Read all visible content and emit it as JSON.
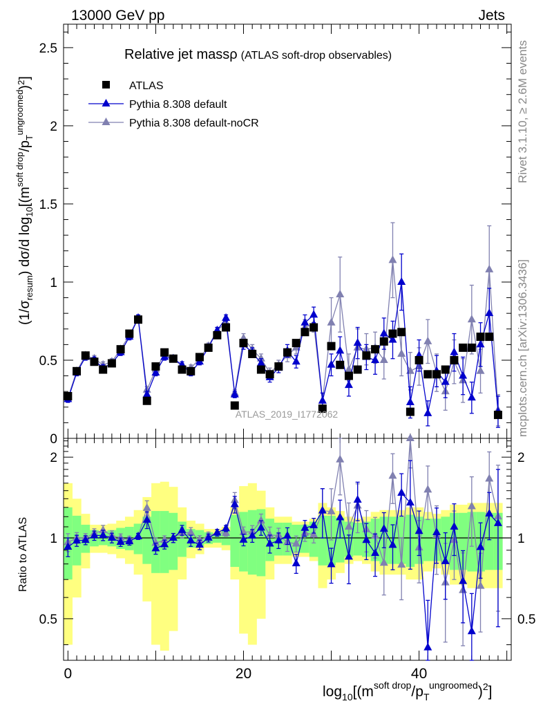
{
  "header": {
    "left": "13000 GeV pp",
    "right": "Jets"
  },
  "side": {
    "rivet": "Rivet 3.1.10, ≥ 2.6M events",
    "mcplots": "mcplots.cern.ch [arXiv:1306.3436]"
  },
  "chart_data": {
    "type": "line",
    "title_main": "Relative jet massρ",
    "title_sub": "(ATLAS soft-drop observables)",
    "watermark": "ATLAS_2019_I1772062",
    "ylabel_main": "(1/σresum) dσ/d log10[(m^soft drop/pT^ungroomed)^2]",
    "ylabel_ratio": "Ratio to ATLAS",
    "xlabel": "log10[(m^soft drop/pT^ungroomed)^2]",
    "xlim": [
      -0.5,
      50.5
    ],
    "ylim_main": [
      0,
      2.65
    ],
    "ylim_ratio": [
      0.35,
      2.35
    ],
    "ratio_log_scale": true,
    "x_ticks": [
      "0",
      "20",
      "40"
    ],
    "y_ticks_main": [
      "0",
      "0.5",
      "1",
      "1.5",
      "2",
      "2.5"
    ],
    "y_ticks_ratio": [
      "0.5",
      "1",
      "2"
    ],
    "colors": {
      "atlas": "#000000",
      "default": "#0000cc",
      "noCR": "#8080b0",
      "band_inner": "#80ff80",
      "band_outer": "#ffff80"
    },
    "legend": {
      "position": "top-left",
      "entries": [
        "ATLAS",
        "Pythia 8.308 default",
        "Pythia 8.308 default-noCR"
      ]
    },
    "x": [
      0,
      1,
      2,
      3,
      4,
      5,
      6,
      7,
      8,
      9,
      10,
      11,
      12,
      13,
      14,
      15,
      16,
      17,
      18,
      19,
      20,
      21,
      22,
      23,
      24,
      25,
      26,
      27,
      28,
      29,
      30,
      31,
      32,
      33,
      34,
      35,
      36,
      37,
      38,
      39,
      40,
      41,
      42,
      43,
      44,
      45,
      46,
      47,
      48,
      49
    ],
    "series": [
      {
        "name": "ATLAS",
        "marker": "square",
        "values": [
          0.27,
          0.43,
          0.53,
          0.49,
          0.44,
          0.48,
          0.57,
          0.67,
          0.76,
          0.24,
          0.46,
          0.55,
          0.51,
          0.44,
          0.43,
          0.52,
          0.58,
          0.66,
          0.71,
          0.21,
          0.61,
          0.54,
          0.44,
          0.41,
          0.46,
          0.55,
          0.61,
          0.68,
          0.71,
          0.19,
          0.59,
          0.47,
          0.4,
          0.44,
          0.53,
          0.57,
          0.62,
          0.67,
          0.68,
          0.17,
          0.5,
          0.41,
          0.41,
          0.44,
          0.5,
          0.58,
          0.58,
          0.65,
          0.65,
          0.15
        ],
        "band_inner": [
          0.3,
          0.21,
          0.12,
          0.07,
          0.06,
          0.07,
          0.09,
          0.1,
          0.13,
          0.2,
          0.26,
          0.26,
          0.24,
          0.15,
          0.08,
          0.07,
          0.05,
          0.04,
          0.06,
          0.22,
          0.25,
          0.27,
          0.28,
          0.18,
          0.14,
          0.14,
          0.12,
          0.12,
          0.15,
          0.21,
          0.21,
          0.19,
          0.15,
          0.14,
          0.15,
          0.18,
          0.2,
          0.2,
          0.2,
          0.22,
          0.2,
          0.18,
          0.18,
          0.2,
          0.24,
          0.24,
          0.25,
          0.25,
          0.24,
          0.24
        ],
        "band_outer": [
          0.6,
          0.4,
          0.23,
          0.12,
          0.12,
          0.13,
          0.16,
          0.2,
          0.27,
          0.42,
          0.6,
          0.62,
          0.55,
          0.3,
          0.16,
          0.13,
          0.08,
          0.08,
          0.1,
          0.3,
          0.56,
          0.6,
          0.5,
          0.3,
          0.2,
          0.2,
          0.15,
          0.15,
          0.18,
          0.35,
          0.3,
          0.26,
          0.2,
          0.18,
          0.2,
          0.25,
          0.27,
          0.27,
          0.27,
          0.3,
          0.3,
          0.25,
          0.23,
          0.27,
          0.33,
          0.33,
          0.35,
          0.35,
          0.35,
          0.35
        ]
      },
      {
        "name": "Pythia 8.308 default",
        "marker": "triangle",
        "values": [
          0.25,
          0.42,
          0.52,
          0.5,
          0.45,
          0.48,
          0.55,
          0.65,
          0.77,
          0.28,
          0.42,
          0.52,
          0.51,
          0.47,
          0.42,
          0.49,
          0.58,
          0.69,
          0.77,
          0.28,
          0.6,
          0.55,
          0.48,
          0.39,
          0.45,
          0.56,
          0.49,
          0.74,
          0.79,
          0.24,
          0.47,
          0.56,
          0.34,
          0.61,
          0.52,
          0.5,
          0.67,
          0.63,
          1.0,
          0.23,
          0.53,
          0.16,
          0.43,
          0.36,
          0.55,
          0.4,
          0.26,
          0.6,
          0.8,
          0.17
        ],
        "errors": [
          0.02,
          0.02,
          0.02,
          0.02,
          0.02,
          0.02,
          0.02,
          0.02,
          0.02,
          0.02,
          0.02,
          0.02,
          0.02,
          0.02,
          0.02,
          0.02,
          0.02,
          0.02,
          0.02,
          0.02,
          0.03,
          0.03,
          0.03,
          0.03,
          0.03,
          0.04,
          0.04,
          0.05,
          0.05,
          0.05,
          0.07,
          0.09,
          0.07,
          0.1,
          0.08,
          0.09,
          0.1,
          0.12,
          0.18,
          0.1,
          0.1,
          0.08,
          0.1,
          0.1,
          0.12,
          0.12,
          0.1,
          0.14,
          0.16,
          0.1
        ]
      },
      {
        "name": "Pythia 8.308 default-noCR",
        "marker": "triangle",
        "values": [
          0.26,
          0.43,
          0.53,
          0.51,
          0.47,
          0.49,
          0.57,
          0.66,
          0.77,
          0.31,
          0.44,
          0.54,
          0.51,
          0.46,
          0.45,
          0.51,
          0.59,
          0.69,
          0.74,
          0.29,
          0.64,
          0.57,
          0.51,
          0.42,
          0.47,
          0.53,
          0.58,
          0.71,
          0.73,
          0.24,
          0.74,
          0.92,
          0.44,
          0.58,
          0.57,
          0.58,
          0.5,
          1.14,
          0.54,
          0.43,
          0.46,
          0.62,
          0.42,
          0.3,
          0.49,
          0.37,
          0.76,
          0.43,
          1.08,
          0.18
        ],
        "errors": [
          0.02,
          0.02,
          0.02,
          0.02,
          0.02,
          0.02,
          0.02,
          0.02,
          0.02,
          0.02,
          0.02,
          0.02,
          0.02,
          0.02,
          0.02,
          0.02,
          0.02,
          0.02,
          0.02,
          0.02,
          0.03,
          0.03,
          0.03,
          0.03,
          0.03,
          0.04,
          0.04,
          0.05,
          0.05,
          0.05,
          0.16,
          0.24,
          0.1,
          0.12,
          0.1,
          0.1,
          0.12,
          0.24,
          0.14,
          0.12,
          0.12,
          0.14,
          0.12,
          0.12,
          0.14,
          0.14,
          0.22,
          0.14,
          0.28,
          0.1
        ]
      }
    ]
  }
}
